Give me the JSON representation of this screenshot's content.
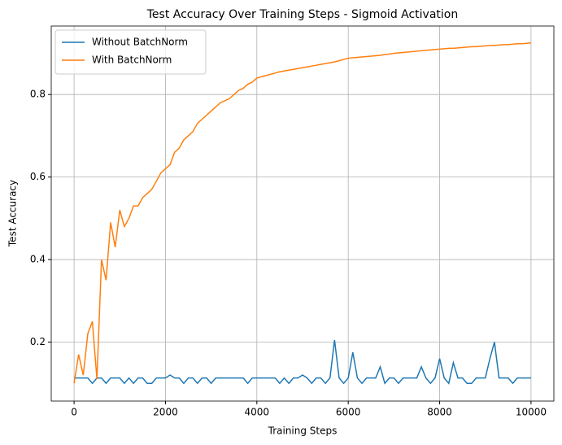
{
  "chart_data": {
    "type": "line",
    "title": "Test Accuracy Over Training Steps - Sigmoid Activation",
    "x_label": "Training Steps",
    "y_label": "Test Accuracy",
    "x": [
      0,
      100,
      200,
      300,
      400,
      500,
      600,
      700,
      800,
      900,
      1000,
      1100,
      1200,
      1300,
      1400,
      1500,
      1600,
      1700,
      1800,
      1900,
      2000,
      2100,
      2200,
      2300,
      2400,
      2500,
      2600,
      2700,
      2800,
      2900,
      3000,
      3100,
      3200,
      3300,
      3400,
      3500,
      3600,
      3700,
      3800,
      3900,
      4000,
      4100,
      4200,
      4300,
      4400,
      4500,
      4600,
      4700,
      4800,
      4900,
      5000,
      5100,
      5200,
      5300,
      5400,
      5500,
      5600,
      5700,
      5800,
      5900,
      6000,
      6100,
      6200,
      6300,
      6400,
      6500,
      6600,
      6700,
      6800,
      6900,
      7000,
      7100,
      7200,
      7300,
      7400,
      7500,
      7600,
      7700,
      7800,
      7900,
      8000,
      8100,
      8200,
      8300,
      8400,
      8500,
      8600,
      8700,
      8800,
      8900,
      9000,
      9100,
      9200,
      9300,
      9400,
      9500,
      9600,
      9700,
      9800,
      9900,
      10000
    ],
    "series": [
      {
        "name": "Without BatchNorm",
        "color": "#1f77b4",
        "values": [
          0.113,
          0.113,
          0.113,
          0.113,
          0.1,
          0.113,
          0.113,
          0.1,
          0.113,
          0.113,
          0.113,
          0.1,
          0.113,
          0.1,
          0.113,
          0.113,
          0.1,
          0.1,
          0.113,
          0.113,
          0.113,
          0.12,
          0.113,
          0.113,
          0.1,
          0.113,
          0.113,
          0.1,
          0.113,
          0.113,
          0.1,
          0.113,
          0.113,
          0.113,
          0.113,
          0.113,
          0.113,
          0.113,
          0.1,
          0.113,
          0.113,
          0.113,
          0.113,
          0.113,
          0.113,
          0.1,
          0.113,
          0.1,
          0.113,
          0.113,
          0.12,
          0.113,
          0.1,
          0.113,
          0.113,
          0.1,
          0.113,
          0.205,
          0.113,
          0.1,
          0.113,
          0.175,
          0.113,
          0.1,
          0.113,
          0.113,
          0.113,
          0.14,
          0.1,
          0.113,
          0.113,
          0.1,
          0.113,
          0.113,
          0.113,
          0.113,
          0.14,
          0.113,
          0.1,
          0.113,
          0.16,
          0.113,
          0.1,
          0.15,
          0.113,
          0.113,
          0.1,
          0.1,
          0.113,
          0.113,
          0.113,
          0.16,
          0.2,
          0.113,
          0.113,
          0.113,
          0.1,
          0.113,
          0.113,
          0.113,
          0.113
        ]
      },
      {
        "name": "With BatchNorm",
        "color": "#ff7f0e",
        "values": [
          0.1,
          0.17,
          0.12,
          0.22,
          0.25,
          0.11,
          0.4,
          0.35,
          0.49,
          0.43,
          0.52,
          0.48,
          0.5,
          0.53,
          0.53,
          0.55,
          0.56,
          0.57,
          0.59,
          0.61,
          0.62,
          0.63,
          0.66,
          0.67,
          0.69,
          0.7,
          0.71,
          0.73,
          0.74,
          0.75,
          0.76,
          0.77,
          0.78,
          0.785,
          0.79,
          0.8,
          0.81,
          0.815,
          0.825,
          0.83,
          0.84,
          0.843,
          0.846,
          0.849,
          0.852,
          0.855,
          0.857,
          0.859,
          0.861,
          0.863,
          0.865,
          0.867,
          0.869,
          0.871,
          0.873,
          0.875,
          0.877,
          0.879,
          0.882,
          0.885,
          0.888,
          0.889,
          0.89,
          0.891,
          0.892,
          0.893,
          0.894,
          0.895,
          0.897,
          0.898,
          0.9,
          0.901,
          0.902,
          0.903,
          0.904,
          0.905,
          0.906,
          0.907,
          0.908,
          0.909,
          0.91,
          0.911,
          0.912,
          0.912,
          0.913,
          0.914,
          0.915,
          0.916,
          0.916,
          0.917,
          0.918,
          0.919,
          0.919,
          0.92,
          0.921,
          0.921,
          0.922,
          0.923,
          0.923,
          0.924,
          0.925
        ]
      }
    ],
    "xlim": [
      -500,
      10500
    ],
    "ylim": [
      0.057,
      0.966
    ],
    "xticks": [
      0,
      2000,
      4000,
      6000,
      8000,
      10000
    ],
    "yticks": [
      0.2,
      0.4,
      0.6,
      0.8
    ],
    "grid": true,
    "legend": "upper-left"
  }
}
